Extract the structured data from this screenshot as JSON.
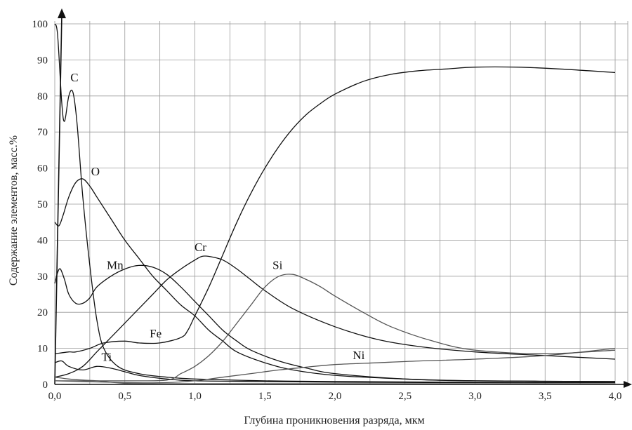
{
  "chart_data": {
    "type": "line",
    "xlabel": "Глубина проникновения разряда, мкм",
    "ylabel": "Содержание элементов, масс.%",
    "xlim": [
      0,
      4.1
    ],
    "ylim": [
      0,
      100
    ],
    "grid": true,
    "x_ticks": [
      "0,0",
      "0,5",
      "1,0",
      "1,5",
      "2,0",
      "2,5",
      "3,0",
      "3,5",
      "4,0"
    ],
    "y_ticks": [
      "0",
      "10",
      "20",
      "30",
      "40",
      "50",
      "60",
      "70",
      "80",
      "90",
      "100"
    ],
    "series": [
      {
        "name": "C",
        "color": "#111111",
        "label_at": [
          0.14,
          84
        ],
        "points": [
          [
            0.0,
            100
          ],
          [
            0.02,
            97
          ],
          [
            0.05,
            78
          ],
          [
            0.07,
            73
          ],
          [
            0.1,
            80
          ],
          [
            0.13,
            81
          ],
          [
            0.16,
            72
          ],
          [
            0.2,
            52
          ],
          [
            0.25,
            33
          ],
          [
            0.3,
            18
          ],
          [
            0.35,
            10
          ],
          [
            0.45,
            5
          ],
          [
            0.6,
            3
          ],
          [
            0.8,
            2
          ],
          [
            1.0,
            1.5
          ],
          [
            1.5,
            1
          ],
          [
            2.0,
            0.8
          ],
          [
            3.0,
            0.6
          ],
          [
            4.0,
            0.5
          ]
        ]
      },
      {
        "name": "O",
        "color": "#111111",
        "label_at": [
          0.29,
          58
        ],
        "points": [
          [
            0.0,
            45
          ],
          [
            0.03,
            44
          ],
          [
            0.06,
            47
          ],
          [
            0.1,
            52
          ],
          [
            0.15,
            56
          ],
          [
            0.2,
            57
          ],
          [
            0.25,
            55
          ],
          [
            0.3,
            52
          ],
          [
            0.4,
            46
          ],
          [
            0.5,
            40
          ],
          [
            0.6,
            35
          ],
          [
            0.7,
            30
          ],
          [
            0.8,
            26
          ],
          [
            0.9,
            22
          ],
          [
            1.0,
            19
          ],
          [
            1.1,
            15
          ],
          [
            1.2,
            12
          ],
          [
            1.3,
            9
          ],
          [
            1.5,
            6
          ],
          [
            1.7,
            4
          ],
          [
            2.0,
            2.5
          ],
          [
            2.5,
            1.5
          ],
          [
            3.0,
            1
          ],
          [
            4.0,
            0.8
          ]
        ]
      },
      {
        "name": "Mn",
        "color": "#111111",
        "label_at": [
          0.43,
          32
        ],
        "points": [
          [
            0.0,
            28
          ],
          [
            0.02,
            31
          ],
          [
            0.04,
            32
          ],
          [
            0.07,
            29
          ],
          [
            0.1,
            25
          ],
          [
            0.15,
            22.5
          ],
          [
            0.2,
            22.5
          ],
          [
            0.25,
            24
          ],
          [
            0.3,
            27
          ],
          [
            0.4,
            30
          ],
          [
            0.5,
            32
          ],
          [
            0.6,
            33
          ],
          [
            0.7,
            32.5
          ],
          [
            0.8,
            30.5
          ],
          [
            0.9,
            27
          ],
          [
            1.0,
            23
          ],
          [
            1.1,
            19
          ],
          [
            1.2,
            15
          ],
          [
            1.3,
            12
          ],
          [
            1.4,
            9.5
          ],
          [
            1.6,
            6.5
          ],
          [
            1.8,
            4.5
          ],
          [
            2.0,
            3
          ],
          [
            2.5,
            1.5
          ],
          [
            3.0,
            1
          ],
          [
            4.0,
            0.8
          ]
        ]
      },
      {
        "name": "Cr",
        "color": "#111111",
        "label_at": [
          1.04,
          37
        ],
        "points": [
          [
            0.0,
            2
          ],
          [
            0.1,
            3
          ],
          [
            0.2,
            5
          ],
          [
            0.3,
            9
          ],
          [
            0.4,
            13
          ],
          [
            0.5,
            17
          ],
          [
            0.6,
            21
          ],
          [
            0.7,
            25
          ],
          [
            0.8,
            29
          ],
          [
            0.9,
            32
          ],
          [
            1.0,
            34.5
          ],
          [
            1.05,
            35.5
          ],
          [
            1.1,
            35.5
          ],
          [
            1.2,
            34.5
          ],
          [
            1.3,
            32
          ],
          [
            1.4,
            29
          ],
          [
            1.5,
            26
          ],
          [
            1.7,
            21
          ],
          [
            2.0,
            16
          ],
          [
            2.3,
            12.5
          ],
          [
            2.6,
            10.5
          ],
          [
            3.0,
            9
          ],
          [
            3.5,
            8
          ],
          [
            4.0,
            7
          ]
        ]
      },
      {
        "name": "Si",
        "color": "#555555",
        "label_at": [
          1.59,
          32
        ],
        "points": [
          [
            0.0,
            1
          ],
          [
            0.5,
            1
          ],
          [
            0.8,
            1.2
          ],
          [
            0.9,
            3
          ],
          [
            1.0,
            5
          ],
          [
            1.1,
            8
          ],
          [
            1.2,
            12
          ],
          [
            1.3,
            17
          ],
          [
            1.4,
            22
          ],
          [
            1.5,
            27
          ],
          [
            1.6,
            30
          ],
          [
            1.7,
            30.5
          ],
          [
            1.8,
            29
          ],
          [
            1.9,
            27
          ],
          [
            2.0,
            24.5
          ],
          [
            2.2,
            20
          ],
          [
            2.4,
            16
          ],
          [
            2.7,
            12
          ],
          [
            3.0,
            9.5
          ],
          [
            3.5,
            8.5
          ],
          [
            4.0,
            9.5
          ]
        ]
      },
      {
        "name": "Fe",
        "color": "#111111",
        "label_at": [
          0.72,
          13
        ],
        "points": [
          [
            0.0,
            8.5
          ],
          [
            0.1,
            9
          ],
          [
            0.15,
            9
          ],
          [
            0.25,
            10
          ],
          [
            0.35,
            11.5
          ],
          [
            0.5,
            12
          ],
          [
            0.6,
            11.5
          ],
          [
            0.75,
            11.5
          ],
          [
            0.9,
            13
          ],
          [
            0.95,
            15
          ],
          [
            1.0,
            19
          ],
          [
            1.1,
            27
          ],
          [
            1.2,
            36
          ],
          [
            1.3,
            45
          ],
          [
            1.4,
            53
          ],
          [
            1.5,
            60
          ],
          [
            1.6,
            66
          ],
          [
            1.7,
            71
          ],
          [
            1.8,
            75
          ],
          [
            1.9,
            78
          ],
          [
            2.0,
            80.5
          ],
          [
            2.2,
            84
          ],
          [
            2.4,
            86
          ],
          [
            2.6,
            87
          ],
          [
            2.8,
            87.5
          ],
          [
            3.0,
            88
          ],
          [
            3.3,
            88
          ],
          [
            3.6,
            87.5
          ],
          [
            4.0,
            86.5
          ]
        ]
      },
      {
        "name": "Ti",
        "color": "#111111",
        "label_at": [
          0.37,
          6.5
        ],
        "points": [
          [
            0.0,
            6
          ],
          [
            0.05,
            6.5
          ],
          [
            0.1,
            5
          ],
          [
            0.2,
            4
          ],
          [
            0.3,
            5
          ],
          [
            0.4,
            4.5
          ],
          [
            0.5,
            3.5
          ],
          [
            0.6,
            2.5
          ],
          [
            0.8,
            1.5
          ],
          [
            1.0,
            1
          ],
          [
            1.5,
            0.8
          ],
          [
            2.0,
            0.6
          ],
          [
            3.0,
            0.5
          ],
          [
            4.0,
            0.5
          ]
        ]
      },
      {
        "name": "Ni",
        "color": "#555555",
        "label_at": [
          2.17,
          7
        ],
        "points": [
          [
            0.0,
            1
          ],
          [
            0.5,
            0.5
          ],
          [
            0.8,
            0.5
          ],
          [
            1.0,
            1
          ],
          [
            1.2,
            2
          ],
          [
            1.4,
            3
          ],
          [
            1.6,
            4
          ],
          [
            1.8,
            4.8
          ],
          [
            2.0,
            5.5
          ],
          [
            2.3,
            6
          ],
          [
            2.6,
            6.5
          ],
          [
            3.0,
            7
          ],
          [
            3.5,
            8
          ],
          [
            4.0,
            10
          ]
        ]
      },
      {
        "name": "",
        "color": "#555555",
        "label_at": null,
        "points": [
          [
            0.0,
            2
          ],
          [
            0.1,
            1.5
          ],
          [
            0.2,
            1.2
          ],
          [
            0.3,
            1
          ],
          [
            0.4,
            0.6
          ],
          [
            0.5,
            0.3
          ],
          [
            0.7,
            0.2
          ],
          [
            1.0,
            0.2
          ],
          [
            2.0,
            0.2
          ],
          [
            4.0,
            0.2
          ]
        ]
      }
    ]
  }
}
